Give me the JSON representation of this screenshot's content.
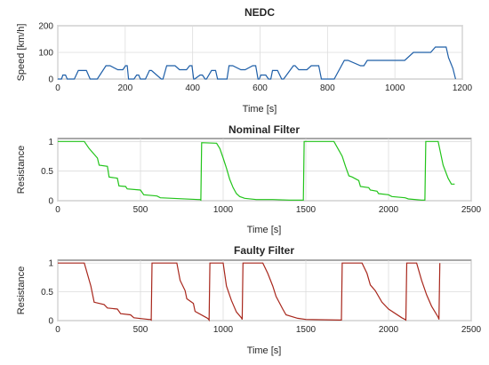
{
  "chart_data": [
    {
      "type": "line",
      "title": "NEDC",
      "xlabel": "Time [s]",
      "ylabel": "Speed [km/h]",
      "xlim": [
        0,
        1200
      ],
      "ylim": [
        0,
        200
      ],
      "xticks": [
        0,
        200,
        400,
        600,
        800,
        1000,
        1200
      ],
      "yticks": [
        0,
        100,
        200
      ],
      "grid": true,
      "color": "#1f5fa8",
      "series": [
        {
          "x": [
            0,
            11,
            15,
            23,
            28,
            49,
            61,
            85,
            96,
            117,
            143,
            155,
            178,
            193,
            201,
            206,
            210,
            226,
            234,
            240,
            245,
            260,
            272,
            278,
            307,
            312,
            323,
            348,
            361,
            382,
            391,
            398,
            403,
            406,
            422,
            429,
            437,
            441,
            456,
            468,
            474,
            502,
            508,
            519,
            543,
            556,
            578,
            587,
            594,
            598,
            602,
            617,
            625,
            632,
            637,
            652,
            664,
            670,
            699,
            704,
            715,
            739,
            752,
            774,
            782,
            790,
            794,
            800,
            820,
            850,
            861,
            898,
            908,
            918,
            968,
            982,
            987,
            1018,
            1029,
            1055,
            1068,
            1096,
            1106,
            1120,
            1140,
            1152,
            1159,
            1172,
            1180
          ],
          "y": [
            0,
            0,
            15,
            15,
            0,
            0,
            32,
            32,
            0,
            0,
            50,
            50,
            35,
            35,
            50,
            50,
            0,
            0,
            15,
            15,
            0,
            0,
            32,
            32,
            0,
            0,
            50,
            50,
            35,
            35,
            50,
            50,
            0,
            0,
            15,
            15,
            0,
            0,
            32,
            32,
            0,
            0,
            50,
            50,
            35,
            35,
            50,
            50,
            0,
            0,
            15,
            15,
            0,
            0,
            32,
            32,
            0,
            0,
            50,
            50,
            35,
            35,
            50,
            50,
            0,
            0,
            0,
            0,
            0,
            70,
            70,
            50,
            50,
            70,
            70,
            70,
            70,
            70,
            70,
            100,
            100,
            100,
            100,
            120,
            120,
            120,
            80,
            40,
            0
          ]
        }
      ]
    },
    {
      "type": "line",
      "title": "Nominal Filter",
      "xlabel": "Time [s]",
      "ylabel": "Resistance",
      "xlim": [
        0,
        2500
      ],
      "ylim": [
        0,
        1.05
      ],
      "xticks": [
        0,
        500,
        1000,
        1500,
        2000,
        2500
      ],
      "yticks": [
        0,
        0.5,
        1
      ],
      "grid": true,
      "color": "#22c41a",
      "series": [
        {
          "x": [
            0,
            160,
            190,
            240,
            250,
            300,
            310,
            360,
            370,
            410,
            420,
            500,
            520,
            600,
            620,
            850,
            860,
            865,
            870,
            960,
            980,
            1000,
            1020,
            1040,
            1060,
            1080,
            1100,
            1130,
            1200,
            1300,
            1400,
            1470,
            1480,
            1485,
            1490,
            1670,
            1700,
            1720,
            1740,
            1760,
            1780,
            1820,
            1830,
            1880,
            1890,
            1930,
            1940,
            2000,
            2020,
            2100,
            2120,
            2200,
            2210,
            2220,
            2225,
            2300,
            2330,
            2360,
            2380,
            2400
          ],
          "y": [
            1,
            1,
            0.88,
            0.72,
            0.6,
            0.58,
            0.4,
            0.38,
            0.25,
            0.24,
            0.2,
            0.18,
            0.1,
            0.08,
            0.05,
            0.02,
            0.02,
            0.01,
            0.98,
            0.97,
            0.88,
            0.72,
            0.55,
            0.36,
            0.22,
            0.12,
            0.07,
            0.04,
            0.02,
            0.02,
            0.01,
            0.01,
            0.01,
            0.01,
            1,
            1,
            0.85,
            0.75,
            0.58,
            0.42,
            0.4,
            0.34,
            0.24,
            0.22,
            0.18,
            0.16,
            0.12,
            0.1,
            0.07,
            0.05,
            0.03,
            0.01,
            0.01,
            0.01,
            1,
            1,
            0.6,
            0.38,
            0.28,
            0.28
          ]
        }
      ]
    },
    {
      "type": "line",
      "title": "Faulty Filter",
      "xlabel": "Time [s]",
      "ylabel": "Resistance",
      "xlim": [
        0,
        2500
      ],
      "ylim": [
        0,
        1.05
      ],
      "xticks": [
        0,
        500,
        1000,
        1500,
        2000,
        2500
      ],
      "yticks": [
        0,
        0.5,
        1
      ],
      "grid": true,
      "color": "#a8271c",
      "series": [
        {
          "x": [
            0,
            160,
            200,
            220,
            280,
            300,
            360,
            380,
            440,
            460,
            550,
            560,
            565,
            570,
            720,
            740,
            770,
            780,
            820,
            830,
            900,
            910,
            915,
            920,
            1000,
            1020,
            1050,
            1080,
            1110,
            1115,
            1120,
            1240,
            1270,
            1300,
            1320,
            1360,
            1380,
            1450,
            1500,
            1700,
            1710,
            1715,
            1720,
            1840,
            1870,
            1890,
            1920,
            1960,
            2000,
            2080,
            2100,
            2105,
            2110,
            2170,
            2200,
            2230,
            2260,
            2300,
            2305,
            2310
          ],
          "y": [
            1,
            1,
            0.6,
            0.32,
            0.28,
            0.22,
            0.2,
            0.12,
            0.1,
            0.05,
            0.02,
            0.02,
            0.01,
            1,
            1,
            0.7,
            0.52,
            0.38,
            0.3,
            0.16,
            0.05,
            0.03,
            0.01,
            1,
            1,
            0.6,
            0.35,
            0.15,
            0.05,
            0.02,
            1,
            1,
            0.82,
            0.6,
            0.42,
            0.2,
            0.1,
            0.04,
            0.02,
            0.01,
            0.01,
            0.01,
            1,
            1,
            0.82,
            0.62,
            0.52,
            0.32,
            0.2,
            0.05,
            0.02,
            0.01,
            1,
            1,
            0.7,
            0.45,
            0.25,
            0.06,
            0.02,
            1
          ]
        }
      ]
    }
  ]
}
